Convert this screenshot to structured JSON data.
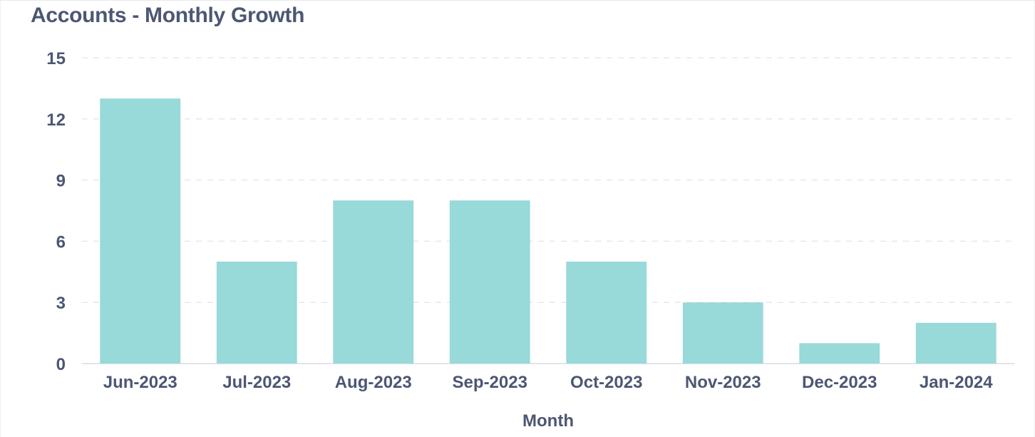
{
  "card": {
    "title": "Accounts - Monthly Growth"
  },
  "chart_data": {
    "type": "bar",
    "title": "Accounts - Monthly Growth",
    "xlabel": "Month",
    "ylabel": "",
    "categories": [
      "Jun-2023",
      "Jul-2023",
      "Aug-2023",
      "Sep-2023",
      "Oct-2023",
      "Nov-2023",
      "Dec-2023",
      "Jan-2024"
    ],
    "values": [
      13,
      5,
      8,
      8,
      5,
      3,
      1,
      2
    ],
    "ylim": [
      0,
      15
    ],
    "yticks": [
      0,
      3,
      6,
      9,
      12,
      15
    ],
    "grid": true,
    "legend": "none",
    "colors": {
      "bar": "#98d9d9",
      "text": "#4c5773",
      "grid": "#e5e7ea",
      "axis": "#e2e4e8"
    }
  }
}
